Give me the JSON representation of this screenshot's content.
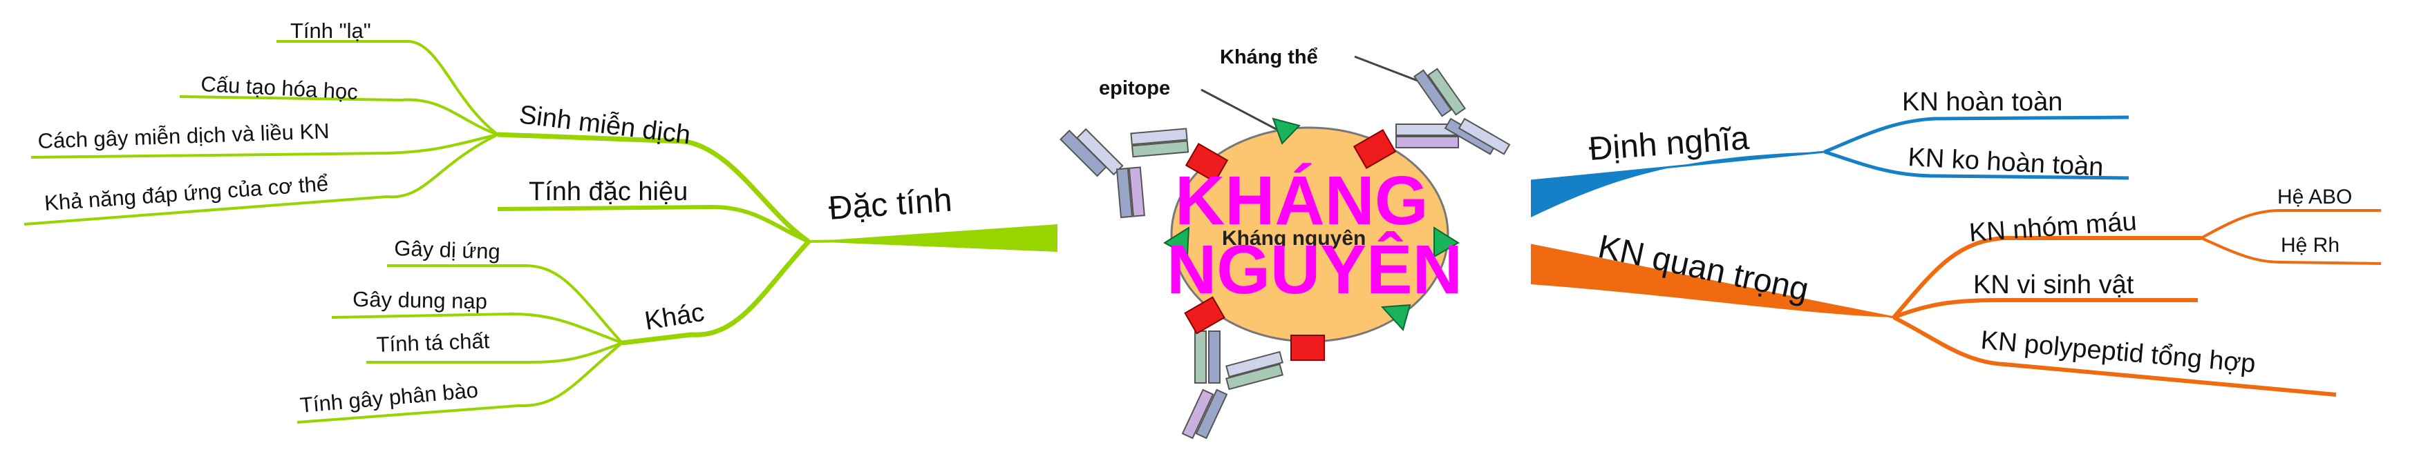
{
  "center": {
    "title_line1": "KHÁNG",
    "title_line2": "NGUYÊN",
    "inner_label": "Kháng nguyên",
    "epitope_label": "epitope",
    "antibody_label": "Kháng thể"
  },
  "colors": {
    "dac_tinh": "#97d400",
    "dinh_nghia": "#1480c8",
    "kn_quan_trong": "#f06b10",
    "center_fill": "#fcc671",
    "center_text": "#ff00ff",
    "epitope_red": "#ee1c1c",
    "epitope_green": "#19b35a"
  },
  "left": {
    "dac_tinh": {
      "label": "Đặc tính",
      "sinh_mien_dich": {
        "label": "Sinh miễn dịch",
        "items": [
          "Tính \"lạ\"",
          "Cấu tạo hóa học",
          "Cách gây miễn dịch và liều KN",
          "Khả năng đáp ứng của cơ thể"
        ]
      },
      "tinh_dac_hieu": {
        "label": "Tính đặc hiệu"
      },
      "khac": {
        "label": "Khác",
        "items": [
          "Gây dị ứng",
          "Gây dung nạp",
          "Tính tá chất",
          "Tính gây phân bào"
        ]
      }
    }
  },
  "right": {
    "dinh_nghia": {
      "label": "Định nghĩa",
      "items": [
        "KN hoàn toàn",
        "KN ko hoàn toàn"
      ]
    },
    "kn_quan_trong": {
      "label": "KN quan trọng",
      "kn_nhom_mau": {
        "label": "KN nhóm máu",
        "items": [
          "Hệ ABO",
          "Hệ Rh"
        ]
      },
      "kn_vi_sinh_vat": {
        "label": "KN vi sinh vật"
      },
      "kn_polypeptid": {
        "label": "KN polypeptid tổng hợp"
      }
    }
  }
}
